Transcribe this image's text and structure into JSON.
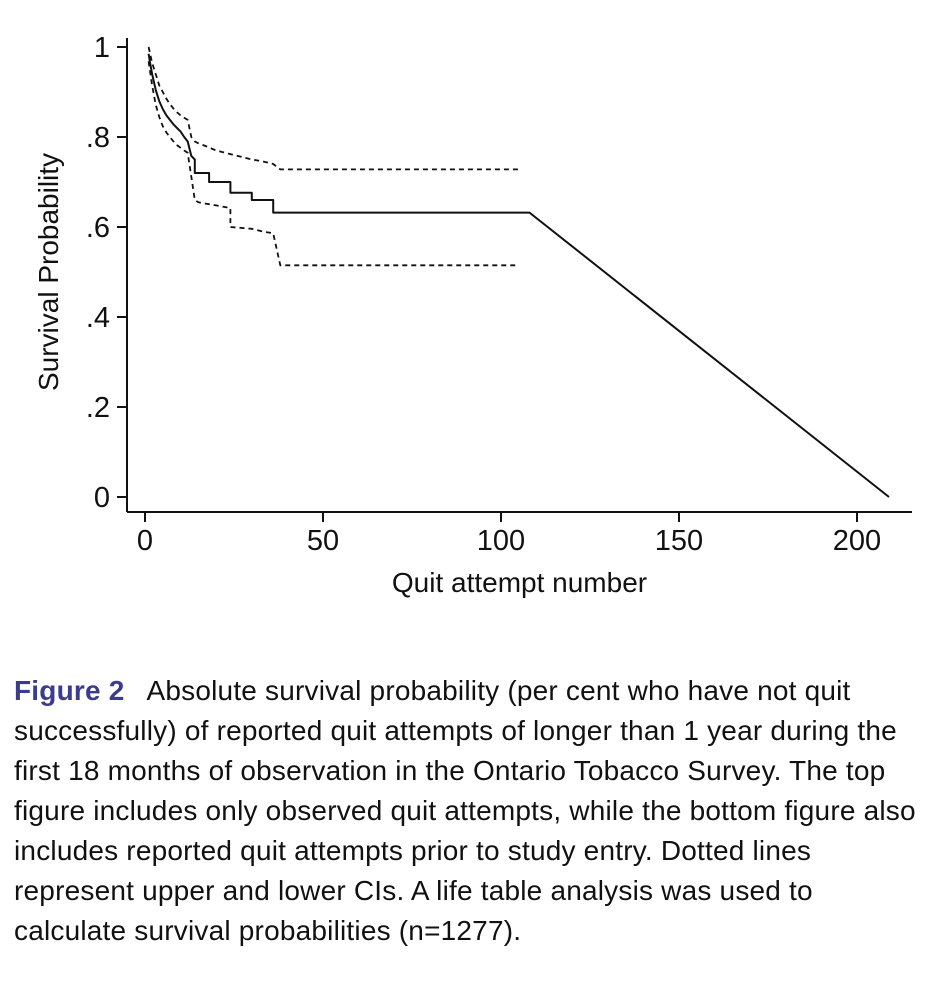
{
  "figure": {
    "caption_label": "Figure 2",
    "caption_text": "Absolute survival probability (per cent who have not quit successfully) of reported quit attempts of longer than 1 year during the first 18 months of observation in the Ontario Tobacco Survey. The top figure includes only observed quit attempts, while the bottom figure also includes reported quit attempts prior to study entry. Dotted lines represent upper and lower CIs. A life table analysis was used to calculate survival probabilities (n=1277).",
    "label_color": "#3b3c8e"
  },
  "chart_data": {
    "type": "line",
    "title": "",
    "xlabel": "Quit attempt number",
    "ylabel": "Survival Probability",
    "xlim": [
      0,
      215
    ],
    "ylim": [
      0,
      1
    ],
    "grid": false,
    "legend": false,
    "x_ticks": [
      0,
      50,
      100,
      150,
      200
    ],
    "x_tick_labels": [
      "0",
      "50",
      "100",
      "150",
      "200"
    ],
    "y_ticks": [
      0,
      0.2,
      0.4,
      0.6,
      0.8,
      1
    ],
    "y_tick_labels": [
      "0",
      ".2",
      ".4",
      ".6",
      ".8",
      "1"
    ],
    "series": [
      {
        "name": "survival-estimate",
        "style": "solid",
        "points": [
          [
            1,
            0.985
          ],
          [
            1.5,
            0.962
          ],
          [
            2,
            0.94
          ],
          [
            3,
            0.905
          ],
          [
            4,
            0.88
          ],
          [
            5,
            0.862
          ],
          [
            6,
            0.848
          ],
          [
            7,
            0.838
          ],
          [
            8,
            0.828
          ],
          [
            9,
            0.82
          ],
          [
            10,
            0.812
          ],
          [
            11,
            0.8
          ],
          [
            12,
            0.79
          ],
          [
            13,
            0.758
          ],
          [
            14,
            0.75
          ],
          [
            14,
            0.72
          ],
          [
            18,
            0.72
          ],
          [
            18,
            0.7
          ],
          [
            24,
            0.7
          ],
          [
            24,
            0.676
          ],
          [
            30,
            0.676
          ],
          [
            30,
            0.66
          ],
          [
            36,
            0.66
          ],
          [
            36,
            0.632
          ],
          [
            38,
            0.632
          ],
          [
            108,
            0.632
          ],
          [
            209,
            0
          ]
        ]
      },
      {
        "name": "upper-ci",
        "style": "dashed",
        "points": [
          [
            1,
            1.0
          ],
          [
            2,
            0.965
          ],
          [
            3,
            0.94
          ],
          [
            4,
            0.915
          ],
          [
            5,
            0.9
          ],
          [
            6,
            0.885
          ],
          [
            7,
            0.873
          ],
          [
            8,
            0.863
          ],
          [
            9,
            0.855
          ],
          [
            10,
            0.848
          ],
          [
            11,
            0.843
          ],
          [
            12,
            0.838
          ],
          [
            13,
            0.8
          ],
          [
            14,
            0.79
          ],
          [
            15,
            0.786
          ],
          [
            17,
            0.78
          ],
          [
            20,
            0.77
          ],
          [
            24,
            0.762
          ],
          [
            27,
            0.756
          ],
          [
            30,
            0.75
          ],
          [
            33,
            0.746
          ],
          [
            36,
            0.74
          ],
          [
            38,
            0.728
          ],
          [
            105,
            0.728
          ]
        ]
      },
      {
        "name": "lower-ci",
        "style": "dashed",
        "points": [
          [
            1,
            0.968
          ],
          [
            2,
            0.915
          ],
          [
            3,
            0.872
          ],
          [
            4,
            0.845
          ],
          [
            5,
            0.824
          ],
          [
            6,
            0.81
          ],
          [
            7,
            0.8
          ],
          [
            8,
            0.79
          ],
          [
            9,
            0.782
          ],
          [
            10,
            0.776
          ],
          [
            11,
            0.77
          ],
          [
            12,
            0.765
          ],
          [
            13,
            0.712
          ],
          [
            14,
            0.66
          ],
          [
            15,
            0.655
          ],
          [
            17,
            0.652
          ],
          [
            20,
            0.648
          ],
          [
            24,
            0.642
          ],
          [
            24,
            0.6
          ],
          [
            30,
            0.596
          ],
          [
            33,
            0.59
          ],
          [
            36,
            0.586
          ],
          [
            38,
            0.515
          ],
          [
            104,
            0.515
          ]
        ]
      }
    ]
  }
}
